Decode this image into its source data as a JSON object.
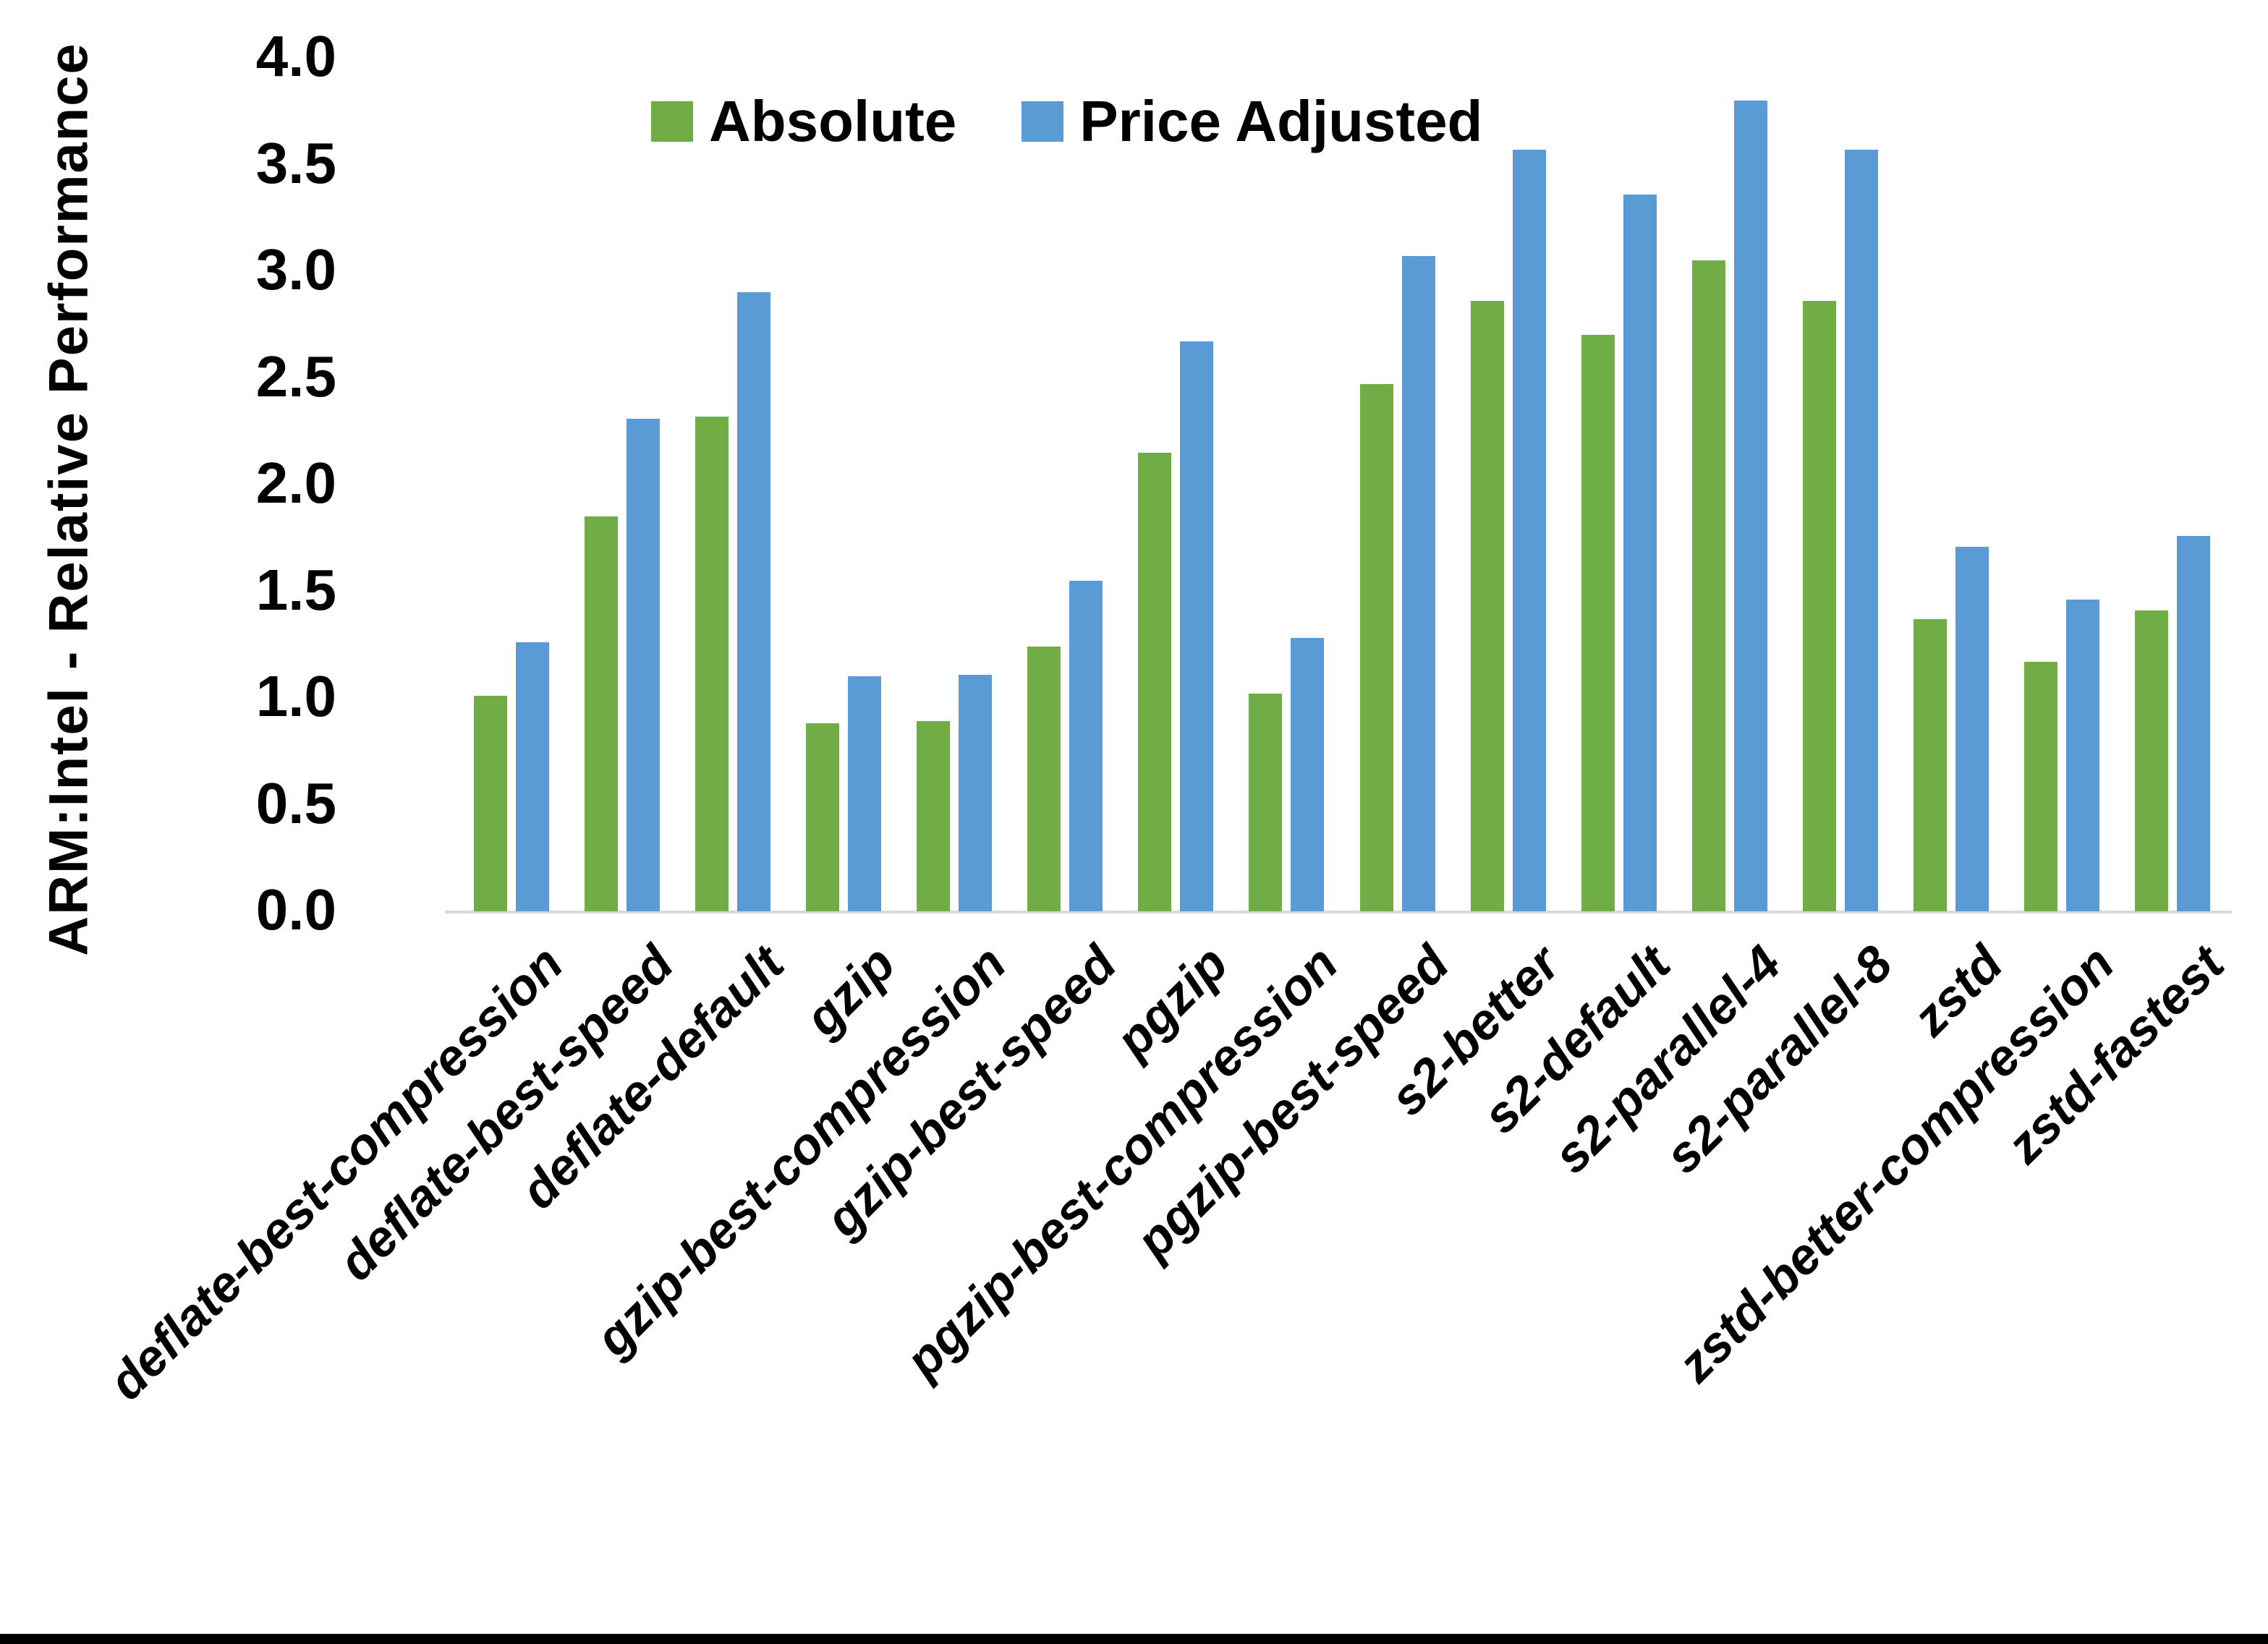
{
  "chart_data": {
    "type": "bar",
    "title": "",
    "xlabel": "",
    "ylabel": "ARM:Intel - Relative Performance",
    "ylim": [
      0,
      4
    ],
    "ytick_step": 0.5,
    "yticks": [
      "0.0",
      "0.5",
      "1.0",
      "1.5",
      "2.0",
      "2.5",
      "3.0",
      "3.5",
      "4.0"
    ],
    "grid": false,
    "legend_position": "top-center",
    "categories": [
      "deflate-best-compression",
      "deflate-best-speed",
      "deflate-default",
      "gzip",
      "gzip-best-compression",
      "gzip-best-speed",
      "pgzip",
      "pgzip-best-compression",
      "pgzip-best-speed",
      "s2-better",
      "s2-default",
      "s2-parallel-4",
      "s2-parallel-8",
      "zstd",
      "zstd-better-compression",
      "zstd-fastest"
    ],
    "series": [
      {
        "name": "Absolute",
        "color": "#70AD47",
        "values": [
          1.01,
          1.85,
          2.32,
          0.88,
          0.89,
          1.24,
          2.15,
          1.02,
          2.47,
          2.86,
          2.7,
          3.05,
          2.86,
          1.37,
          1.17,
          1.41
        ]
      },
      {
        "name": "Price Adjusted",
        "color": "#5B9BD5",
        "values": [
          1.26,
          2.31,
          2.9,
          1.1,
          1.11,
          1.55,
          2.67,
          1.28,
          3.07,
          3.57,
          3.36,
          3.8,
          3.57,
          1.71,
          1.46,
          1.76
        ]
      }
    ]
  },
  "frame": {
    "bottom_border_color": "#000000"
  }
}
